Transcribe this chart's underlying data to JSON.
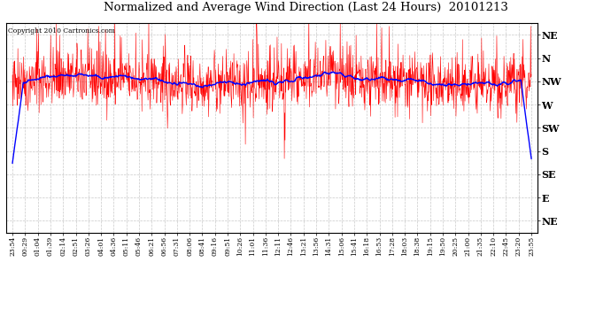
{
  "title": "Normalized and Average Wind Direction (Last 24 Hours)  20101213",
  "copyright": "Copyright 2010 Cartronics.com",
  "background_color": "#ffffff",
  "plot_bg_color": "#ffffff",
  "grid_color": "#bbbbbb",
  "red_color": "#ff0000",
  "blue_color": "#0000ff",
  "ytick_labels": [
    "NE",
    "N",
    "NW",
    "W",
    "SW",
    "S",
    "SE",
    "E",
    "NE"
  ],
  "ytick_values": [
    9,
    8,
    7,
    6,
    5,
    4,
    3,
    2,
    1
  ],
  "ylim": [
    0.5,
    9.5
  ],
  "xtick_labels": [
    "23:54",
    "00:29",
    "01:04",
    "01:39",
    "02:14",
    "02:51",
    "03:26",
    "04:01",
    "04:36",
    "05:11",
    "05:46",
    "06:21",
    "06:56",
    "07:31",
    "08:06",
    "08:41",
    "09:16",
    "09:51",
    "10:26",
    "11:01",
    "11:36",
    "12:11",
    "12:46",
    "13:21",
    "13:56",
    "14:31",
    "15:06",
    "15:41",
    "16:18",
    "16:53",
    "17:28",
    "18:03",
    "18:38",
    "19:15",
    "19:50",
    "20:25",
    "21:00",
    "21:35",
    "22:10",
    "22:45",
    "23:20",
    "23:55"
  ],
  "base_value": 7.0,
  "noise_std": 0.55,
  "seed": 42,
  "n_points": 1440,
  "blue_window": 60
}
